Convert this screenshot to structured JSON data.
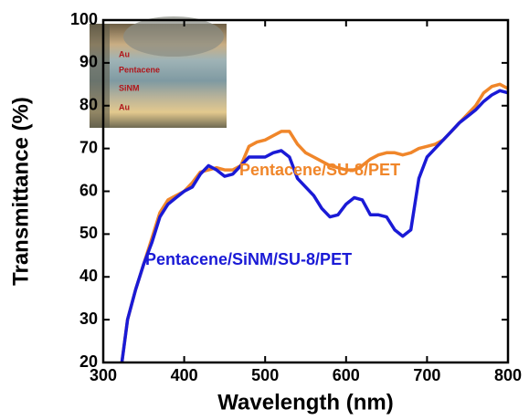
{
  "chart_data": {
    "type": "line",
    "xlabel": "Wavelength (nm)",
    "ylabel": "Transmittance (%)",
    "x": [
      323,
      330,
      340,
      350,
      360,
      370,
      380,
      390,
      400,
      410,
      420,
      430,
      440,
      450,
      460,
      470,
      480,
      490,
      500,
      510,
      520,
      530,
      540,
      550,
      560,
      570,
      580,
      590,
      600,
      610,
      620,
      630,
      640,
      650,
      660,
      670,
      680,
      690,
      700,
      710,
      720,
      730,
      740,
      750,
      760,
      770,
      780,
      790,
      800
    ],
    "series": [
      {
        "name": "Pentacene/SU-8/PET",
        "color": "#f0862a",
        "values": [
          20,
          30,
          37,
          43,
          49,
          55,
          58,
          59,
          60,
          62,
          64.5,
          65,
          65.5,
          65,
          65,
          66,
          70.5,
          71.5,
          72,
          73,
          74,
          74,
          71,
          69,
          68,
          67,
          66,
          65.5,
          65,
          65,
          66,
          67.5,
          68.5,
          69,
          69,
          68.5,
          69,
          70,
          70.5,
          71,
          72,
          74,
          76,
          78,
          80,
          83,
          84.5,
          85,
          84
        ]
      },
      {
        "name": "Pentacene/SiNM/SU-8/PET",
        "color": "#1a1ad6",
        "values": [
          20,
          30,
          37,
          43,
          48,
          54,
          57,
          58.5,
          60,
          61,
          64,
          66,
          65,
          63.5,
          64,
          66,
          68,
          68,
          68,
          69,
          69.5,
          68,
          63,
          61,
          59,
          56,
          54,
          54.5,
          57,
          58.5,
          58,
          54.5,
          54.5,
          54,
          51,
          49.5,
          51,
          63,
          68,
          70,
          72,
          74,
          76,
          77.5,
          79,
          81,
          82.5,
          83.5,
          83
        ]
      }
    ],
    "xlim": [
      300,
      800
    ],
    "xticks": [
      300,
      400,
      500,
      600,
      700,
      800
    ],
    "ylim": [
      20,
      100
    ],
    "yticks": [
      20,
      30,
      40,
      50,
      60,
      70,
      80,
      90,
      100
    ],
    "inset_labels": [
      "Au",
      "Pentacene",
      "SiNM",
      "Au"
    ]
  }
}
